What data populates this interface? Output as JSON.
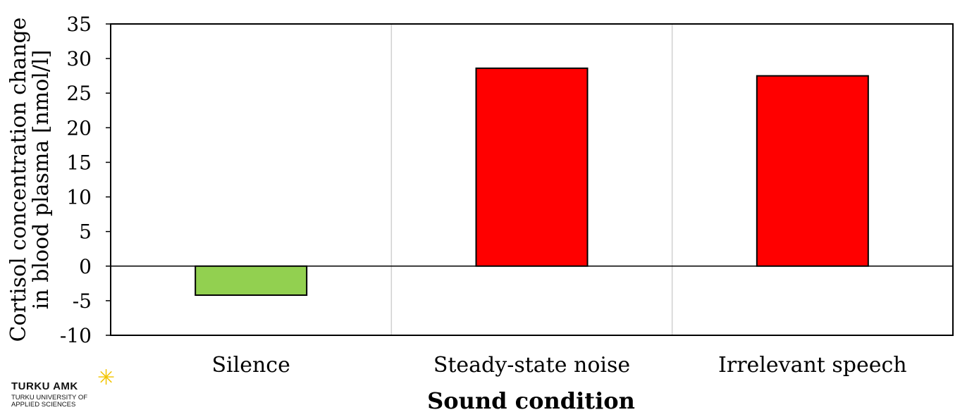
{
  "logo": {
    "name": "TURKU AMK",
    "subtitle": "TURKU UNIVERSITY OF APPLIED SCIENCES",
    "star_color": "#f2c400"
  },
  "chart_data": {
    "type": "bar",
    "title": "",
    "categories": [
      "Silence",
      "Steady-state noise",
      "Irrelevant speech"
    ],
    "values": [
      -4.2,
      28.6,
      27.5
    ],
    "bar_colors": [
      "#92d050",
      "#ff0000",
      "#ff0000"
    ],
    "xlabel": "Sound condition",
    "ylabel": [
      "Cortisol concentration change",
      "in blood plasma [nmol/l]"
    ],
    "ylim": [
      -10,
      35
    ],
    "yticks": [
      -10,
      -5,
      0,
      5,
      10,
      15,
      20,
      25,
      30,
      35
    ],
    "ytick_labels": [
      "-10",
      "-5",
      "0",
      "5",
      "10",
      "15",
      "20",
      "25",
      "30",
      "35"
    ],
    "grid": "vertical category separators",
    "legend": "none"
  }
}
